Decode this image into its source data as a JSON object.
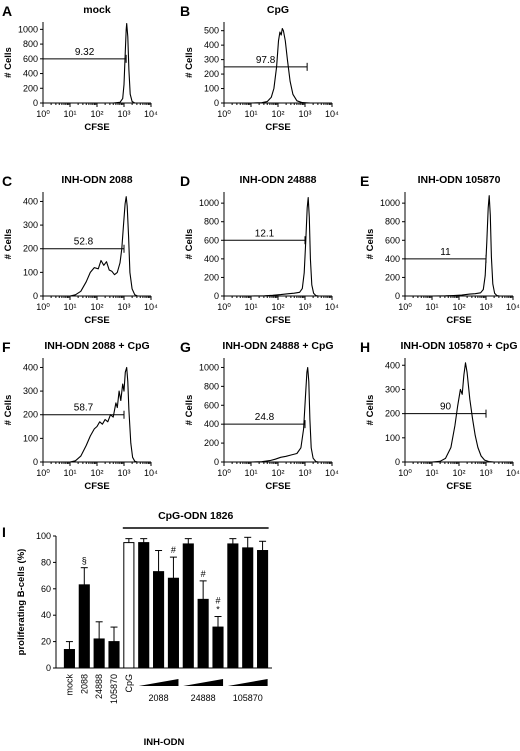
{
  "chart_data": [
    {
      "type": "histogram",
      "letter": "A",
      "title": "mock",
      "xlabel": "CFSE",
      "ylabel": "# Cells",
      "x_scale": "log",
      "x_ticks": [
        "10⁰",
        "10¹",
        "10²",
        "10³",
        "10⁴"
      ],
      "y_ticks": [
        0,
        200,
        400,
        600,
        800,
        1000
      ],
      "ylim": [
        0,
        1100
      ],
      "gate_value": "9.32",
      "gate_range": [
        1,
        1200
      ],
      "gate_level": 600,
      "profile": [
        [
          1.0,
          0
        ],
        [
          2.6,
          0
        ],
        [
          2.85,
          10
        ],
        [
          2.95,
          60
        ],
        [
          3.0,
          250
        ],
        [
          3.05,
          700
        ],
        [
          3.08,
          1000
        ],
        [
          3.1,
          1080
        ],
        [
          3.14,
          900
        ],
        [
          3.18,
          450
        ],
        [
          3.23,
          120
        ],
        [
          3.3,
          20
        ],
        [
          3.4,
          0
        ],
        [
          4.0,
          0
        ]
      ]
    },
    {
      "type": "histogram",
      "letter": "B",
      "title": "CpG",
      "xlabel": "CFSE",
      "ylabel": "# Cells",
      "x_scale": "log",
      "x_ticks": [
        "10⁰",
        "10¹",
        "10²",
        "10³",
        "10⁴"
      ],
      "y_ticks": [
        0,
        100,
        200,
        300,
        400,
        500
      ],
      "ylim": [
        0,
        560
      ],
      "gate_value": "97.8",
      "gate_range": [
        1,
        1200
      ],
      "gate_level": 250,
      "profile": [
        [
          1.0,
          0
        ],
        [
          1.4,
          2
        ],
        [
          1.6,
          10
        ],
        [
          1.75,
          40
        ],
        [
          1.85,
          100
        ],
        [
          1.95,
          250
        ],
        [
          2.02,
          430
        ],
        [
          2.07,
          490
        ],
        [
          2.12,
          470
        ],
        [
          2.16,
          515
        ],
        [
          2.2,
          500
        ],
        [
          2.27,
          430
        ],
        [
          2.35,
          300
        ],
        [
          2.45,
          150
        ],
        [
          2.55,
          60
        ],
        [
          2.7,
          15
        ],
        [
          2.9,
          3
        ],
        [
          3.2,
          0
        ],
        [
          4.0,
          0
        ]
      ]
    },
    {
      "type": "histogram",
      "letter": "C",
      "title": "INH-ODN 2088",
      "xlabel": "CFSE",
      "ylabel": "# Cells",
      "x_scale": "log",
      "x_ticks": [
        "10⁰",
        "10¹",
        "10²",
        "10³",
        "10⁴"
      ],
      "y_ticks": [
        0,
        100,
        200,
        300,
        400
      ],
      "ylim": [
        0,
        440
      ],
      "gate_value": "52.8",
      "gate_range": [
        1,
        1000
      ],
      "gate_level": 200,
      "profile": [
        [
          1.0,
          0
        ],
        [
          1.2,
          5
        ],
        [
          1.4,
          20
        ],
        [
          1.6,
          60
        ],
        [
          1.75,
          100
        ],
        [
          1.9,
          120
        ],
        [
          2.05,
          115
        ],
        [
          2.15,
          150
        ],
        [
          2.25,
          130
        ],
        [
          2.35,
          145
        ],
        [
          2.45,
          110
        ],
        [
          2.55,
          105
        ],
        [
          2.65,
          90
        ],
        [
          2.75,
          100
        ],
        [
          2.85,
          140
        ],
        [
          2.92,
          200
        ],
        [
          2.98,
          300
        ],
        [
          3.04,
          390
        ],
        [
          3.08,
          420
        ],
        [
          3.12,
          380
        ],
        [
          3.17,
          250
        ],
        [
          3.22,
          100
        ],
        [
          3.3,
          30
        ],
        [
          3.4,
          5
        ],
        [
          3.5,
          0
        ],
        [
          4.0,
          0
        ]
      ]
    },
    {
      "type": "histogram",
      "letter": "D",
      "title": "INH-ODN 24888",
      "xlabel": "CFSE",
      "ylabel": "# Cells",
      "x_scale": "log",
      "x_ticks": [
        "10⁰",
        "10¹",
        "10²",
        "10³",
        "10⁴"
      ],
      "y_ticks": [
        0,
        200,
        400,
        600,
        800,
        1000
      ],
      "ylim": [
        0,
        1120
      ],
      "gate_value": "12.1",
      "gate_range": [
        1,
        1000
      ],
      "gate_level": 600,
      "profile": [
        [
          1.0,
          0
        ],
        [
          1.5,
          2
        ],
        [
          1.8,
          8
        ],
        [
          2.1,
          15
        ],
        [
          2.4,
          25
        ],
        [
          2.6,
          30
        ],
        [
          2.8,
          40
        ],
        [
          2.9,
          80
        ],
        [
          2.97,
          250
        ],
        [
          3.03,
          600
        ],
        [
          3.08,
          950
        ],
        [
          3.12,
          1060
        ],
        [
          3.16,
          850
        ],
        [
          3.2,
          400
        ],
        [
          3.25,
          120
        ],
        [
          3.32,
          30
        ],
        [
          3.4,
          5
        ],
        [
          3.5,
          0
        ],
        [
          4.0,
          0
        ]
      ]
    },
    {
      "type": "histogram",
      "letter": "E",
      "title": "INH-ODN 105870",
      "xlabel": "CFSE",
      "ylabel": "# Cells",
      "x_scale": "log",
      "x_ticks": [
        "10⁰",
        "10¹",
        "10²",
        "10³",
        "10⁴"
      ],
      "y_ticks": [
        0,
        200,
        400,
        600,
        800,
        1000
      ],
      "ylim": [
        0,
        1120
      ],
      "gate_value": "11",
      "gate_range": [
        1,
        1000
      ],
      "gate_level": 400,
      "profile": [
        [
          1.0,
          0
        ],
        [
          1.5,
          2
        ],
        [
          1.8,
          5
        ],
        [
          2.1,
          10
        ],
        [
          2.4,
          20
        ],
        [
          2.6,
          25
        ],
        [
          2.8,
          35
        ],
        [
          2.9,
          70
        ],
        [
          2.97,
          220
        ],
        [
          3.03,
          580
        ],
        [
          3.08,
          950
        ],
        [
          3.12,
          1080
        ],
        [
          3.16,
          870
        ],
        [
          3.2,
          420
        ],
        [
          3.25,
          130
        ],
        [
          3.32,
          30
        ],
        [
          3.4,
          5
        ],
        [
          3.5,
          0
        ],
        [
          4.0,
          0
        ]
      ]
    },
    {
      "type": "histogram",
      "letter": "F",
      "title": "INH-ODN 2088 + CpG",
      "xlabel": "CFSE",
      "ylabel": "# Cells",
      "x_scale": "log",
      "x_ticks": [
        "10⁰",
        "10¹",
        "10²",
        "10³",
        "10⁴"
      ],
      "y_ticks": [
        0,
        100,
        200,
        300,
        400
      ],
      "ylim": [
        0,
        440
      ],
      "gate_value": "58.7",
      "gate_range": [
        1,
        1000
      ],
      "gate_level": 200,
      "profile": [
        [
          1.0,
          0
        ],
        [
          1.2,
          5
        ],
        [
          1.4,
          25
        ],
        [
          1.6,
          70
        ],
        [
          1.75,
          110
        ],
        [
          1.9,
          140
        ],
        [
          2.0,
          150
        ],
        [
          2.1,
          170
        ],
        [
          2.2,
          160
        ],
        [
          2.3,
          180
        ],
        [
          2.4,
          170
        ],
        [
          2.5,
          200
        ],
        [
          2.6,
          190
        ],
        [
          2.7,
          250
        ],
        [
          2.75,
          230
        ],
        [
          2.82,
          300
        ],
        [
          2.88,
          260
        ],
        [
          2.95,
          330
        ],
        [
          3.0,
          300
        ],
        [
          3.05,
          380
        ],
        [
          3.1,
          400
        ],
        [
          3.14,
          340
        ],
        [
          3.18,
          220
        ],
        [
          3.25,
          80
        ],
        [
          3.32,
          20
        ],
        [
          3.4,
          3
        ],
        [
          3.5,
          0
        ],
        [
          4.0,
          0
        ]
      ]
    },
    {
      "type": "histogram",
      "letter": "G",
      "title": "INH-ODN 24888 + CpG",
      "xlabel": "CFSE",
      "ylabel": "# Cells",
      "x_scale": "log",
      "x_ticks": [
        "10⁰",
        "10¹",
        "10²",
        "10³",
        "10⁴"
      ],
      "y_ticks": [
        0,
        200,
        400,
        600,
        800,
        1000
      ],
      "ylim": [
        0,
        1100
      ],
      "gate_value": "24.8",
      "gate_range": [
        1,
        1000
      ],
      "gate_level": 400,
      "profile": [
        [
          1.0,
          0
        ],
        [
          1.4,
          3
        ],
        [
          1.7,
          15
        ],
        [
          1.9,
          30
        ],
        [
          2.1,
          50
        ],
        [
          2.3,
          60
        ],
        [
          2.5,
          75
        ],
        [
          2.7,
          90
        ],
        [
          2.85,
          150
        ],
        [
          2.95,
          350
        ],
        [
          3.02,
          700
        ],
        [
          3.07,
          950
        ],
        [
          3.1,
          1000
        ],
        [
          3.14,
          850
        ],
        [
          3.18,
          450
        ],
        [
          3.23,
          150
        ],
        [
          3.3,
          40
        ],
        [
          3.4,
          5
        ],
        [
          3.5,
          0
        ],
        [
          4.0,
          0
        ]
      ]
    },
    {
      "type": "histogram",
      "letter": "H",
      "title": "INH-ODN 105870 + CpG",
      "xlabel": "CFSE",
      "ylabel": "# Cells",
      "x_scale": "log",
      "x_ticks": [
        "10⁰",
        "10¹",
        "10²",
        "10³",
        "10⁴"
      ],
      "y_ticks": [
        0,
        100,
        200,
        300,
        400
      ],
      "ylim": [
        0,
        430
      ],
      "gate_value": "90",
      "gate_range": [
        1,
        1000
      ],
      "gate_level": 200,
      "profile": [
        [
          1.0,
          0
        ],
        [
          1.3,
          3
        ],
        [
          1.5,
          15
        ],
        [
          1.7,
          60
        ],
        [
          1.85,
          150
        ],
        [
          1.95,
          230
        ],
        [
          2.05,
          300
        ],
        [
          2.12,
          280
        ],
        [
          2.18,
          360
        ],
        [
          2.24,
          410
        ],
        [
          2.3,
          370
        ],
        [
          2.4,
          260
        ],
        [
          2.5,
          180
        ],
        [
          2.6,
          110
        ],
        [
          2.7,
          60
        ],
        [
          2.82,
          25
        ],
        [
          2.95,
          8
        ],
        [
          3.1,
          2
        ],
        [
          3.3,
          0
        ],
        [
          4.0,
          0
        ]
      ]
    },
    {
      "type": "bar",
      "letter": "I",
      "ylabel": "proliferating B-cells (%)",
      "ylim": [
        0,
        100
      ],
      "y_ticks": [
        0,
        20,
        40,
        60,
        80,
        100
      ],
      "bracket_label": "CpG-ODN 1826",
      "xlabel": "INH-ODN",
      "bars": [
        {
          "label": "mock",
          "value": 14,
          "error": 6,
          "fill": "#000000"
        },
        {
          "label": "2088",
          "value": 63,
          "error": 13,
          "fill": "#000000",
          "mark": "§"
        },
        {
          "label": "24888",
          "value": 22,
          "error": 13,
          "fill": "#000000"
        },
        {
          "label": "105870",
          "value": 20,
          "error": 11,
          "fill": "#000000"
        },
        {
          "label": "CpG",
          "value": 95,
          "error": 3,
          "fill": "#ffffff"
        },
        {
          "group": "2088",
          "value": 95,
          "error": 3,
          "fill": "#000000"
        },
        {
          "group": "2088",
          "value": 73,
          "error": 16,
          "fill": "#000000"
        },
        {
          "group": "2088",
          "value": 68,
          "error": 16,
          "fill": "#000000",
          "mark": "#"
        },
        {
          "group": "24888",
          "value": 94,
          "error": 4,
          "fill": "#000000"
        },
        {
          "group": "24888",
          "value": 52,
          "error": 14,
          "fill": "#000000",
          "mark": "#"
        },
        {
          "group": "24888",
          "value": 31,
          "error": 8,
          "fill": "#000000",
          "mark": "#\n*"
        },
        {
          "group": "105870",
          "value": 94,
          "error": 4,
          "fill": "#000000"
        },
        {
          "group": "105870",
          "value": 91,
          "error": 8,
          "fill": "#000000"
        },
        {
          "group": "105870",
          "value": 89,
          "error": 7,
          "fill": "#000000"
        }
      ],
      "groups": [
        "2088",
        "24888",
        "105870"
      ]
    }
  ]
}
